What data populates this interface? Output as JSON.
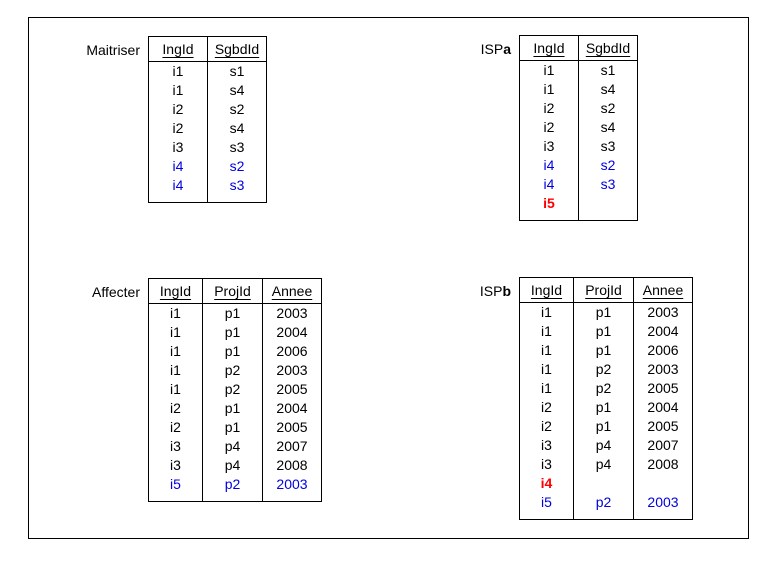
{
  "colors": {
    "background": "#ffffff",
    "border": "#000000",
    "text": "#000000",
    "highlight_blue": "#0000e0",
    "highlight_red": "#ff0000"
  },
  "tables": [
    {
      "id": "maitriser",
      "label_prefix": "Maitriser",
      "label_bold_suffix": "",
      "columns": [
        "IngId",
        "SgbdId"
      ],
      "rows": [
        {
          "cells": [
            "i1",
            "s1"
          ],
          "color": "black"
        },
        {
          "cells": [
            "i1",
            "s4"
          ],
          "color": "black"
        },
        {
          "cells": [
            "i2",
            "s2"
          ],
          "color": "black"
        },
        {
          "cells": [
            "i2",
            "s4"
          ],
          "color": "black"
        },
        {
          "cells": [
            "i3",
            "s3"
          ],
          "color": "black"
        },
        {
          "cells": [
            "i4",
            "s2"
          ],
          "color": "blue"
        },
        {
          "cells": [
            "i4",
            "s3"
          ],
          "color": "blue"
        }
      ]
    },
    {
      "id": "ispa",
      "label_prefix": "ISP",
      "label_bold_suffix": "a",
      "columns": [
        "IngId",
        "SgbdId"
      ],
      "rows": [
        {
          "cells": [
            "i1",
            "s1"
          ],
          "color": "black"
        },
        {
          "cells": [
            "i1",
            "s4"
          ],
          "color": "black"
        },
        {
          "cells": [
            "i2",
            "s2"
          ],
          "color": "black"
        },
        {
          "cells": [
            "i2",
            "s4"
          ],
          "color": "black"
        },
        {
          "cells": [
            "i3",
            "s3"
          ],
          "color": "black"
        },
        {
          "cells": [
            "i4",
            "s2"
          ],
          "color": "blue"
        },
        {
          "cells": [
            "i4",
            "s3"
          ],
          "color": "blue"
        },
        {
          "cells": [
            "i5",
            ""
          ],
          "color": "red"
        }
      ]
    },
    {
      "id": "affecter",
      "label_prefix": "Affecter",
      "label_bold_suffix": "",
      "columns": [
        "IngId",
        "ProjId",
        "Annee"
      ],
      "rows": [
        {
          "cells": [
            "i1",
            "p1",
            "2003"
          ],
          "color": "black"
        },
        {
          "cells": [
            "i1",
            "p1",
            "2004"
          ],
          "color": "black"
        },
        {
          "cells": [
            "i1",
            "p1",
            "2006"
          ],
          "color": "black"
        },
        {
          "cells": [
            "i1",
            "p2",
            "2003"
          ],
          "color": "black"
        },
        {
          "cells": [
            "i1",
            "p2",
            "2005"
          ],
          "color": "black"
        },
        {
          "cells": [
            "i2",
            "p1",
            "2004"
          ],
          "color": "black"
        },
        {
          "cells": [
            "i2",
            "p1",
            "2005"
          ],
          "color": "black"
        },
        {
          "cells": [
            "i3",
            "p4",
            "2007"
          ],
          "color": "black"
        },
        {
          "cells": [
            "i3",
            "p4",
            "2008"
          ],
          "color": "black"
        },
        {
          "cells": [
            "i5",
            "p2",
            "2003"
          ],
          "color": "blue"
        }
      ]
    },
    {
      "id": "ispb",
      "label_prefix": "ISP",
      "label_bold_suffix": "b",
      "columns": [
        "IngId",
        "ProjId",
        "Annee"
      ],
      "rows": [
        {
          "cells": [
            "i1",
            "p1",
            "2003"
          ],
          "color": "black"
        },
        {
          "cells": [
            "i1",
            "p1",
            "2004"
          ],
          "color": "black"
        },
        {
          "cells": [
            "i1",
            "p1",
            "2006"
          ],
          "color": "black"
        },
        {
          "cells": [
            "i1",
            "p2",
            "2003"
          ],
          "color": "black"
        },
        {
          "cells": [
            "i1",
            "p2",
            "2005"
          ],
          "color": "black"
        },
        {
          "cells": [
            "i2",
            "p1",
            "2004"
          ],
          "color": "black"
        },
        {
          "cells": [
            "i2",
            "p1",
            "2005"
          ],
          "color": "black"
        },
        {
          "cells": [
            "i3",
            "p4",
            "2007"
          ],
          "color": "black"
        },
        {
          "cells": [
            "i3",
            "p4",
            "2008"
          ],
          "color": "black"
        },
        {
          "cells": [
            "i4",
            "",
            ""
          ],
          "color": "red"
        },
        {
          "cells": [
            "i5",
            "p2",
            "2003"
          ],
          "color": "blue"
        }
      ]
    }
  ]
}
